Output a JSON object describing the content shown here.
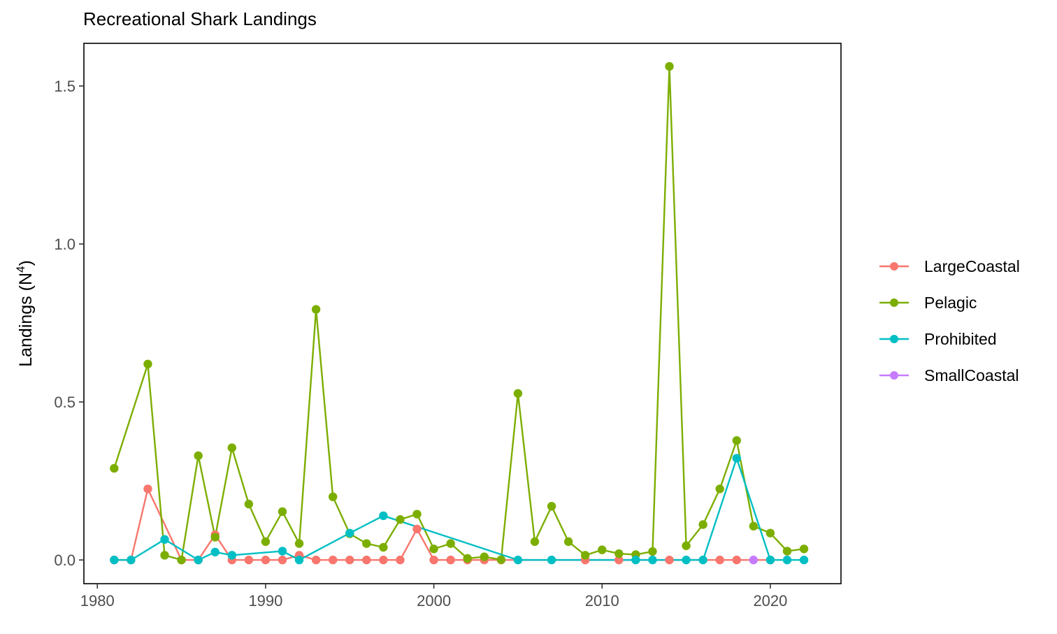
{
  "chart_data": {
    "type": "line",
    "title": "Recreational Shark Landings",
    "xlabel": "",
    "ylabel": "Landings (N",
    "ylabel_superscript": "4",
    "ylabel_suffix": ")",
    "xlim": [
      1979.2,
      2024.2
    ],
    "ylim": [
      -0.075,
      1.635
    ],
    "x_ticks": [
      1980,
      1990,
      2000,
      2010,
      2020
    ],
    "y_ticks": [
      0.0,
      0.5,
      1.0,
      1.5
    ],
    "y_tick_labels": [
      "0.0",
      "0.5",
      "1.0",
      "1.5"
    ],
    "grid": false,
    "legend_position": "right",
    "series": [
      {
        "name": "LargeCoastal",
        "color": "#F8766D",
        "x": [
          1981,
          1982,
          1983,
          1985,
          1986,
          1987,
          1988,
          1989,
          1990,
          1991,
          1992,
          1993,
          1994,
          1995,
          1996,
          1997,
          1998,
          1999,
          2000,
          2001,
          2002,
          2003,
          2004,
          2009,
          2011,
          2014,
          2017,
          2018,
          2020
        ],
        "values": [
          0,
          0,
          0.225,
          0,
          0,
          0.08,
          0,
          0,
          0,
          0,
          0.015,
          0,
          0,
          0,
          0,
          0,
          0,
          0.098,
          0,
          0,
          0,
          0,
          0,
          0,
          0,
          0,
          0,
          0,
          0
        ]
      },
      {
        "name": "Pelagic",
        "color": "#7CAE00",
        "x": [
          1981,
          1983,
          1984,
          1985,
          1986,
          1987,
          1988,
          1989,
          1990,
          1991,
          1992,
          1993,
          1994,
          1995,
          1996,
          1997,
          1998,
          1999,
          2000,
          2001,
          2002,
          2003,
          2004,
          2005,
          2006,
          2007,
          2008,
          2009,
          2010,
          2011,
          2012,
          2013,
          2014,
          2015,
          2016,
          2017,
          2018,
          2019,
          2020,
          2021,
          2022
        ],
        "values": [
          0.29,
          0.62,
          0.015,
          0,
          0.33,
          0.072,
          0.355,
          0.177,
          0.058,
          0.153,
          0.052,
          0.793,
          0.2,
          0.083,
          0.052,
          0.04,
          0.128,
          0.145,
          0.035,
          0.052,
          0.005,
          0.01,
          0.001,
          0.527,
          0.058,
          0.17,
          0.058,
          0.015,
          0.032,
          0.02,
          0.017,
          0.027,
          1.562,
          0.045,
          0.112,
          0.225,
          0.378,
          0.107,
          0.085,
          0.028,
          0.035
        ]
      },
      {
        "name": "Prohibited",
        "color": "#00BFC4",
        "x": [
          1981,
          1982,
          1984,
          1986,
          1987,
          1988,
          1991,
          1992,
          1995,
          1997,
          2005,
          2007,
          2012,
          2013,
          2015,
          2016,
          2018,
          2020,
          2021,
          2022
        ],
        "values": [
          0,
          0,
          0.065,
          0,
          0.025,
          0.015,
          0.028,
          0,
          0.085,
          0.14,
          0,
          0,
          0,
          0,
          0,
          0,
          0.322,
          0,
          0,
          0
        ]
      },
      {
        "name": "SmallCoastal",
        "color": "#C77CFF",
        "x": [
          2019
        ],
        "values": [
          0
        ]
      }
    ]
  }
}
